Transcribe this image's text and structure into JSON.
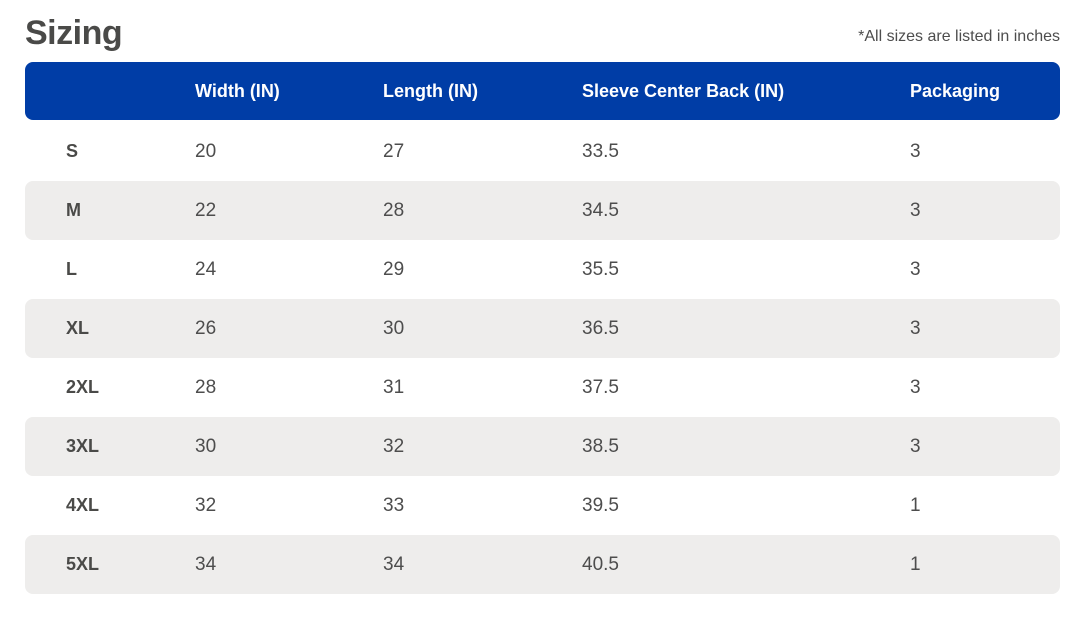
{
  "page": {
    "title": "Sizing",
    "note": "*All sizes are listed in inches"
  },
  "table": {
    "columns": [
      "",
      "Width (IN)",
      "Length (IN)",
      "Sleeve Center Back (IN)",
      "Packaging"
    ],
    "rows": [
      {
        "size": "S",
        "width": "20",
        "length": "27",
        "sleeve": "33.5",
        "packaging": "3"
      },
      {
        "size": "M",
        "width": "22",
        "length": "28",
        "sleeve": "34.5",
        "packaging": "3"
      },
      {
        "size": "L",
        "width": "24",
        "length": "29",
        "sleeve": "35.5",
        "packaging": "3"
      },
      {
        "size": "XL",
        "width": "26",
        "length": "30",
        "sleeve": "36.5",
        "packaging": "3"
      },
      {
        "size": "2XL",
        "width": "28",
        "length": "31",
        "sleeve": "37.5",
        "packaging": "3"
      },
      {
        "size": "3XL",
        "width": "30",
        "length": "32",
        "sleeve": "38.5",
        "packaging": "3"
      },
      {
        "size": "4XL",
        "width": "32",
        "length": "33",
        "sleeve": "39.5",
        "packaging": "1"
      },
      {
        "size": "5XL",
        "width": "34",
        "length": "34",
        "sleeve": "40.5",
        "packaging": "1"
      }
    ]
  },
  "colors": {
    "header_bg": "#003da6",
    "row_alt_bg": "#eeedec",
    "title_color": "#4a4a48",
    "text_color": "#4d4d4d",
    "header_text": "#ffffff"
  }
}
